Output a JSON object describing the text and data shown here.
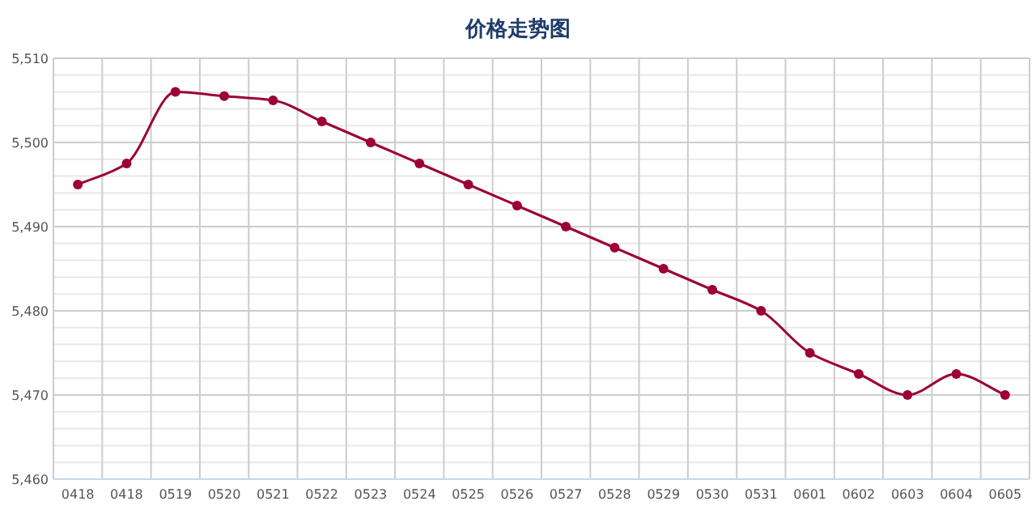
{
  "chart_data": {
    "type": "line",
    "title": "价格走势图",
    "categories": [
      "0418",
      "0418",
      "0519",
      "0520",
      "0521",
      "0522",
      "0523",
      "0524",
      "0525",
      "0526",
      "0527",
      "0528",
      "0529",
      "0530",
      "0531",
      "0601",
      "0602",
      "0603",
      "0604",
      "0605"
    ],
    "series": [
      {
        "color": "#9b0036",
        "values": [
          5495,
          5497.5,
          5506,
          5505.5,
          5505,
          5502.5,
          5500,
          5497.5,
          5495,
          5492.5,
          5490,
          5487.5,
          5485,
          5482.5,
          5480,
          5475,
          5472.5,
          5470,
          5472.5,
          5470
        ]
      }
    ],
    "ylim": [
      5460,
      5510
    ],
    "yticks": [
      {
        "value": 5460,
        "label": "5,460"
      },
      {
        "value": 5462,
        "label": null
      },
      {
        "value": 5464,
        "label": null
      },
      {
        "value": 5466,
        "label": null
      },
      {
        "value": 5468,
        "label": null
      },
      {
        "value": 5470,
        "label": "5,470"
      },
      {
        "value": 5472,
        "label": null
      },
      {
        "value": 5474,
        "label": null
      },
      {
        "value": 5476,
        "label": null
      },
      {
        "value": 5478,
        "label": null
      },
      {
        "value": 5480,
        "label": "5,480"
      },
      {
        "value": 5482,
        "label": null
      },
      {
        "value": 5484,
        "label": null
      },
      {
        "value": 5486,
        "label": null
      },
      {
        "value": 5488,
        "label": null
      },
      {
        "value": 5490,
        "label": "5,490"
      },
      {
        "value": 5492,
        "label": null
      },
      {
        "value": 5494,
        "label": null
      },
      {
        "value": 5496,
        "label": null
      },
      {
        "value": 5498,
        "label": null
      },
      {
        "value": 5500,
        "label": "5,500"
      },
      {
        "value": 5502,
        "label": null
      },
      {
        "value": 5504,
        "label": null
      },
      {
        "value": 5506,
        "label": null
      },
      {
        "value": 5508,
        "label": null
      },
      {
        "value": 5510,
        "label": "5,510"
      }
    ],
    "grid": true,
    "marker": "circle",
    "line_style": "solid"
  }
}
